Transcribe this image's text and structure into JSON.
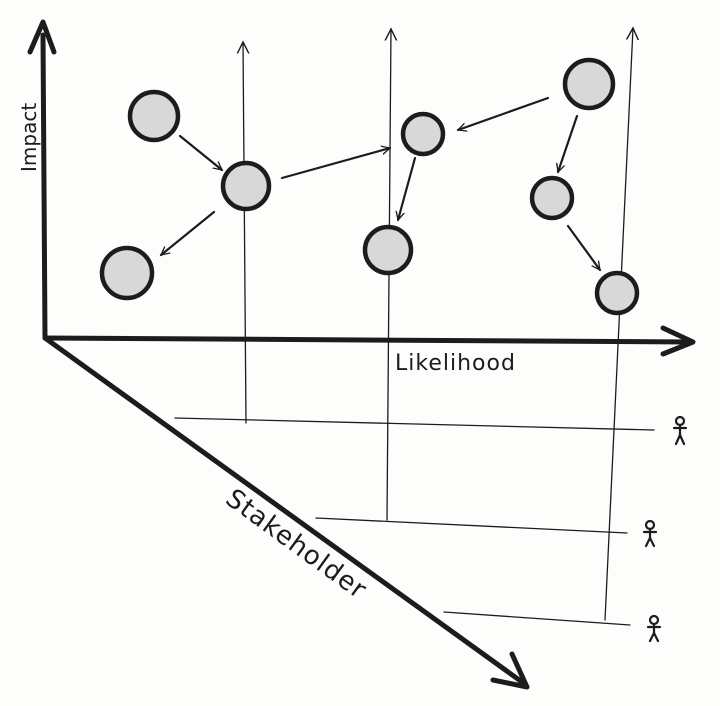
{
  "axes": {
    "impact": "Impact",
    "likelihood": "Likelihood",
    "stakeholder": "Stakeholder"
  },
  "colors": {
    "ink": "#1c1c1c",
    "node_fill": "#d8d8d8",
    "paper": "#fdfdfc"
  },
  "icons": [
    "stick-figure-icon",
    "stick-figure-icon",
    "stick-figure-icon"
  ]
}
